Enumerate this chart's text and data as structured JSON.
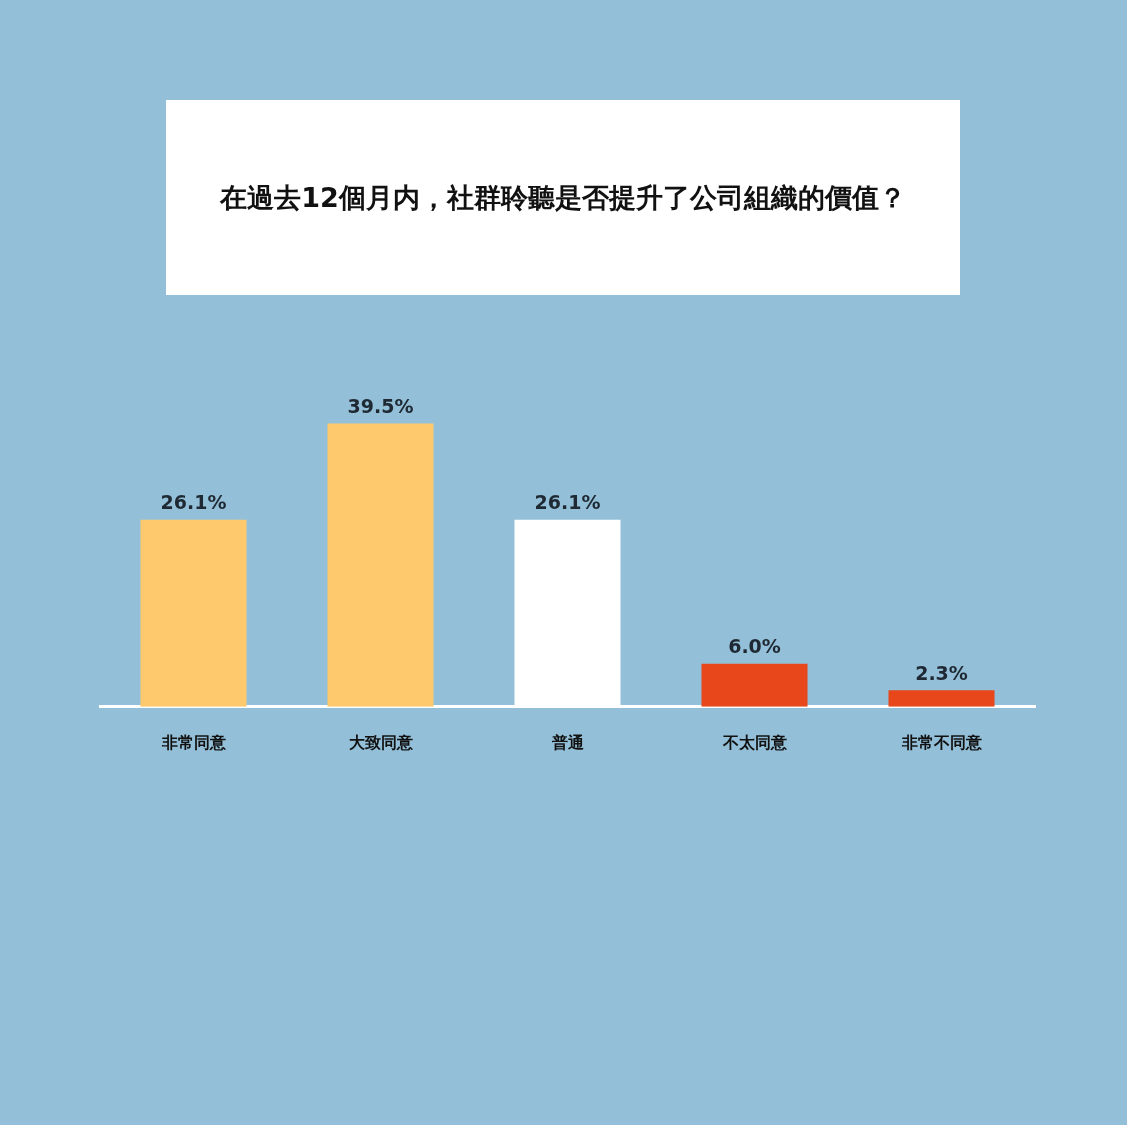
{
  "chart_data": {
    "type": "bar",
    "title": "在過去12個月内，社群聆聽是否提升了公司組織的價值？",
    "categories": [
      "非常同意",
      "大致同意",
      "普通",
      "不太同意",
      "非常不同意"
    ],
    "values": [
      26.1,
      39.5,
      26.1,
      6.0,
      2.3
    ],
    "colors": [
      "#fec96c",
      "#fec96c",
      "#ffffff",
      "#e8461b",
      "#e8461b"
    ],
    "value_labels": [
      "26.1%",
      "39.5%",
      "26.1%",
      "6.0%",
      "2.3%"
    ],
    "tick_labels": "x",
    "grid": false,
    "legend": false
  }
}
